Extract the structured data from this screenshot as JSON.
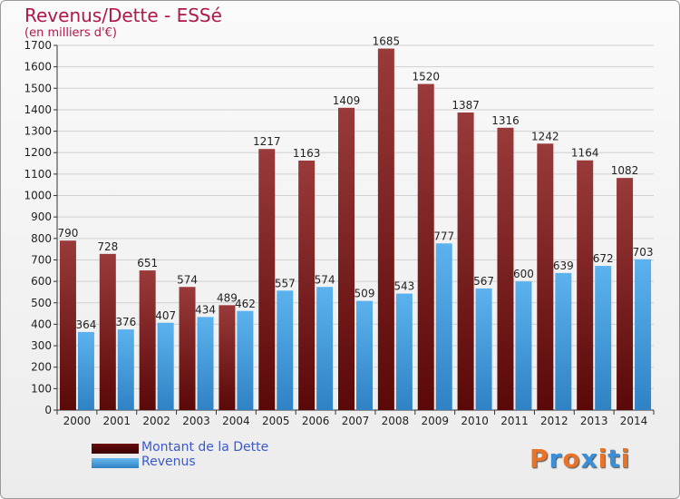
{
  "header": {
    "title": "Revenus/Dette - ESSé",
    "subtitle": "(en milliers d'€)"
  },
  "legend": {
    "items": [
      {
        "label": "Montant de la Dette",
        "color": "#7a1a1a"
      },
      {
        "label": "Revenus",
        "color": "#4aa0e0"
      }
    ]
  },
  "logo": {
    "text": "Proxiti"
  },
  "colors": {
    "debt_top": "#9a3a3a",
    "debt_bottom": "#5a0808",
    "revenue_top": "#5cb2ee",
    "revenue_bottom": "#2f82c4",
    "axis_text": "#222222",
    "grid": "#d0d0d0"
  },
  "chart_data": {
    "type": "bar",
    "title": "Revenus/Dette - ESSé",
    "subtitle": "(en milliers d'€)",
    "categories": [
      "2000",
      "2001",
      "2002",
      "2003",
      "2004",
      "2005",
      "2006",
      "2007",
      "2008",
      "2009",
      "2010",
      "2011",
      "2012",
      "2013",
      "2014"
    ],
    "series": [
      {
        "name": "Montant de la Dette",
        "values": [
          790,
          728,
          651,
          574,
          489,
          1217,
          1163,
          1409,
          1685,
          1520,
          1387,
          1316,
          1242,
          1164,
          1082
        ]
      },
      {
        "name": "Revenus",
        "values": [
          364,
          376,
          407,
          434,
          462,
          557,
          574,
          509,
          543,
          777,
          567,
          600,
          639,
          672,
          703
        ]
      }
    ],
    "ylim": [
      0,
      1700
    ],
    "yticks": [
      0,
      100,
      200,
      300,
      400,
      500,
      600,
      700,
      800,
      900,
      1000,
      1100,
      1200,
      1300,
      1400,
      1500,
      1600,
      1700
    ],
    "grid": true,
    "legend_position": "bottom-left"
  }
}
